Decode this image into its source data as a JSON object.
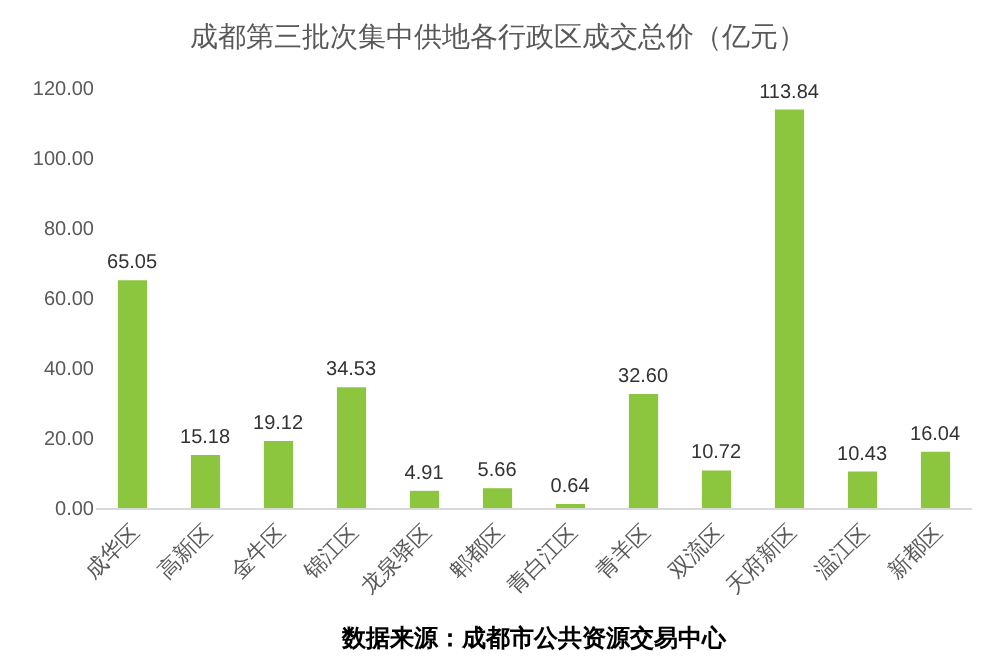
{
  "chart_data": {
    "type": "bar",
    "title": "成都第三批次集中供地各行政区成交总价（亿元）",
    "categories": [
      "成华区",
      "高新区",
      "金牛区",
      "锦江区",
      "龙泉驿区",
      "郫都区",
      "青白江区",
      "青羊区",
      "双流区",
      "天府新区",
      "温江区",
      "新都区"
    ],
    "values": [
      65.05,
      15.18,
      19.12,
      34.53,
      4.91,
      5.66,
      0.64,
      32.6,
      10.72,
      113.84,
      10.43,
      16.04
    ],
    "value_labels": [
      "65.05",
      "15.18",
      "19.12",
      "34.53",
      "4.91",
      "5.66",
      "0.64",
      "32.60",
      "10.72",
      "113.84",
      "10.43",
      "16.04"
    ],
    "color": "#8cc63f",
    "ylim": [
      0,
      120
    ],
    "yticks": [
      {
        "value": 0,
        "label": "0.00"
      },
      {
        "value": 20,
        "label": "20.00"
      },
      {
        "value": 40,
        "label": "40.00"
      },
      {
        "value": 60,
        "label": "60.00"
      },
      {
        "value": 80,
        "label": "80.00"
      },
      {
        "value": 100,
        "label": "100.00"
      },
      {
        "value": 120,
        "label": "120.00"
      }
    ],
    "annotations": [
      "数据来源：成都市公共资源交易中心"
    ]
  }
}
